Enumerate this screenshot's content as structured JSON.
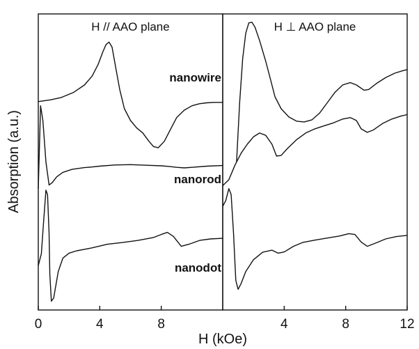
{
  "chart_data": {
    "type": "line",
    "xlabel": "H (kOe)",
    "ylabel": "Absorption (a.u.)",
    "y_units": "arbitrary",
    "panels": [
      {
        "title": "H // AAO plane",
        "xlim": [
          0,
          12
        ],
        "xticks": [
          0,
          4,
          8
        ],
        "series": [
          {
            "name": "nanowire",
            "points": [
              [
                0,
                0.704
              ],
              [
                0.8,
                0.71
              ],
              [
                1.5,
                0.718
              ],
              [
                2.3,
                0.735
              ],
              [
                3.0,
                0.76
              ],
              [
                3.5,
                0.79
              ],
              [
                3.9,
                0.83
              ],
              [
                4.2,
                0.872
              ],
              [
                4.4,
                0.896
              ],
              [
                4.6,
                0.905
              ],
              [
                4.8,
                0.888
              ],
              [
                5.0,
                0.83
              ],
              [
                5.3,
                0.745
              ],
              [
                5.6,
                0.68
              ],
              [
                6.0,
                0.64
              ],
              [
                6.4,
                0.615
              ],
              [
                6.8,
                0.598
              ],
              [
                7.2,
                0.57
              ],
              [
                7.5,
                0.552
              ],
              [
                7.8,
                0.548
              ],
              [
                8.2,
                0.57
              ],
              [
                8.6,
                0.61
              ],
              [
                9.0,
                0.65
              ],
              [
                9.5,
                0.675
              ],
              [
                10.0,
                0.69
              ],
              [
                10.5,
                0.697
              ],
              [
                11.0,
                0.7
              ],
              [
                11.5,
                0.701
              ],
              [
                12.0,
                0.701
              ]
            ]
          },
          {
            "name": "nanorod",
            "points": [
              [
                0,
                0.41
              ],
              [
                0.15,
                0.69
              ],
              [
                0.3,
                0.64
              ],
              [
                0.5,
                0.5
              ],
              [
                0.7,
                0.422
              ],
              [
                0.9,
                0.43
              ],
              [
                1.2,
                0.45
              ],
              [
                1.6,
                0.465
              ],
              [
                2.2,
                0.475
              ],
              [
                3.0,
                0.481
              ],
              [
                3.5,
                0.483
              ],
              [
                4.0,
                0.486
              ],
              [
                5.0,
                0.49
              ],
              [
                6.0,
                0.491
              ],
              [
                7.0,
                0.489
              ],
              [
                8.0,
                0.487
              ],
              [
                8.5,
                0.485
              ],
              [
                9.0,
                0.482
              ],
              [
                9.5,
                0.48
              ],
              [
                10.0,
                0.482
              ],
              [
                11.0,
                0.486
              ],
              [
                12.0,
                0.488
              ]
            ]
          },
          {
            "name": "nanodot",
            "points": [
              [
                0,
                0.15
              ],
              [
                0.2,
                0.19
              ],
              [
                0.35,
                0.3
              ],
              [
                0.5,
                0.405
              ],
              [
                0.6,
                0.39
              ],
              [
                0.7,
                0.26
              ],
              [
                0.75,
                0.12
              ],
              [
                0.85,
                0.03
              ],
              [
                1.0,
                0.04
              ],
              [
                1.3,
                0.13
              ],
              [
                1.6,
                0.175
              ],
              [
                2.0,
                0.192
              ],
              [
                2.5,
                0.2
              ],
              [
                3.0,
                0.205
              ],
              [
                3.5,
                0.21
              ],
              [
                4.5,
                0.222
              ],
              [
                5.5,
                0.228
              ],
              [
                6.5,
                0.235
              ],
              [
                7.5,
                0.245
              ],
              [
                8.0,
                0.255
              ],
              [
                8.4,
                0.262
              ],
              [
                8.8,
                0.248
              ],
              [
                9.3,
                0.215
              ],
              [
                9.8,
                0.222
              ],
              [
                10.5,
                0.235
              ],
              [
                11.2,
                0.24
              ],
              [
                12.0,
                0.242
              ]
            ]
          }
        ]
      },
      {
        "title": "H ⊥ AAO plane",
        "xlim": [
          0,
          12
        ],
        "xticks": [
          4,
          8,
          12
        ],
        "series": [
          {
            "name": "",
            "points": [
              [
                0.9,
                0.5
              ],
              [
                1.1,
                0.7
              ],
              [
                1.3,
                0.85
              ],
              [
                1.5,
                0.935
              ],
              [
                1.7,
                0.97
              ],
              [
                1.9,
                0.972
              ],
              [
                2.1,
                0.955
              ],
              [
                2.4,
                0.91
              ],
              [
                2.8,
                0.84
              ],
              [
                3.1,
                0.78
              ],
              [
                3.4,
                0.72
              ],
              [
                3.8,
                0.68
              ],
              [
                4.3,
                0.652
              ],
              [
                4.8,
                0.638
              ],
              [
                5.3,
                0.635
              ],
              [
                5.8,
                0.642
              ],
              [
                6.3,
                0.665
              ],
              [
                6.8,
                0.7
              ],
              [
                7.3,
                0.735
              ],
              [
                7.8,
                0.76
              ],
              [
                8.3,
                0.768
              ],
              [
                8.7,
                0.76
              ],
              [
                9.2,
                0.742
              ],
              [
                9.5,
                0.745
              ],
              [
                10.0,
                0.765
              ],
              [
                10.6,
                0.785
              ],
              [
                11.2,
                0.8
              ],
              [
                11.7,
                0.808
              ],
              [
                12.0,
                0.812
              ]
            ]
          },
          {
            "name": "",
            "points": [
              [
                0,
                0.42
              ],
              [
                0.4,
                0.44
              ],
              [
                0.8,
                0.49
              ],
              [
                1.2,
                0.53
              ],
              [
                1.6,
                0.56
              ],
              [
                2.0,
                0.585
              ],
              [
                2.4,
                0.598
              ],
              [
                2.8,
                0.59
              ],
              [
                3.2,
                0.56
              ],
              [
                3.5,
                0.52
              ],
              [
                3.8,
                0.522
              ],
              [
                4.2,
                0.545
              ],
              [
                4.8,
                0.575
              ],
              [
                5.4,
                0.598
              ],
              [
                6.0,
                0.612
              ],
              [
                6.6,
                0.622
              ],
              [
                7.2,
                0.632
              ],
              [
                7.8,
                0.645
              ],
              [
                8.3,
                0.65
              ],
              [
                8.7,
                0.64
              ],
              [
                9.0,
                0.612
              ],
              [
                9.4,
                0.6
              ],
              [
                9.8,
                0.608
              ],
              [
                10.4,
                0.63
              ],
              [
                11.0,
                0.645
              ],
              [
                11.6,
                0.655
              ],
              [
                12.0,
                0.66
              ]
            ]
          },
          {
            "name": "",
            "points": [
              [
                0,
                0.35
              ],
              [
                0.2,
                0.37
              ],
              [
                0.4,
                0.41
              ],
              [
                0.55,
                0.39
              ],
              [
                0.7,
                0.26
              ],
              [
                0.85,
                0.1
              ],
              [
                1.0,
                0.07
              ],
              [
                1.2,
                0.09
              ],
              [
                1.5,
                0.13
              ],
              [
                2.0,
                0.17
              ],
              [
                2.6,
                0.195
              ],
              [
                3.2,
                0.202
              ],
              [
                3.6,
                0.192
              ],
              [
                4.0,
                0.196
              ],
              [
                4.6,
                0.215
              ],
              [
                5.2,
                0.228
              ],
              [
                6.0,
                0.236
              ],
              [
                6.8,
                0.243
              ],
              [
                7.6,
                0.25
              ],
              [
                8.2,
                0.258
              ],
              [
                8.6,
                0.255
              ],
              [
                9.0,
                0.23
              ],
              [
                9.4,
                0.215
              ],
              [
                9.9,
                0.225
              ],
              [
                10.6,
                0.24
              ],
              [
                11.3,
                0.248
              ],
              [
                12.0,
                0.252
              ]
            ]
          }
        ]
      }
    ]
  }
}
